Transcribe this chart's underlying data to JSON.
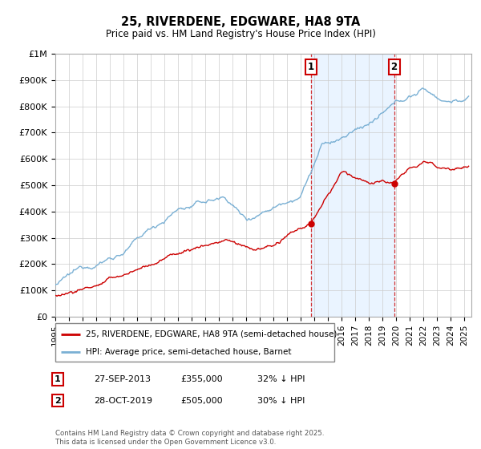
{
  "title": "25, RIVERDENE, EDGWARE, HA8 9TA",
  "subtitle": "Price paid vs. HM Land Registry's House Price Index (HPI)",
  "ylabel_ticks": [
    "£0",
    "£100K",
    "£200K",
    "£300K",
    "£400K",
    "£500K",
    "£600K",
    "£700K",
    "£800K",
    "£900K",
    "£1M"
  ],
  "ylim": [
    0,
    1000000
  ],
  "xlim_start": 1995,
  "xlim_end": 2025.5,
  "legend_line1": "25, RIVERDENE, EDGWARE, HA8 9TA (semi-detached house)",
  "legend_line2": "HPI: Average price, semi-detached house, Barnet",
  "annotation1_date": "27-SEP-2013",
  "annotation1_price": "£355,000",
  "annotation1_hpi": "32% ↓ HPI",
  "annotation2_date": "28-OCT-2019",
  "annotation2_price": "£505,000",
  "annotation2_hpi": "30% ↓ HPI",
  "footnote": "Contains HM Land Registry data © Crown copyright and database right 2025.\nThis data is licensed under the Open Government Licence v3.0.",
  "line_color_red": "#cc0000",
  "line_color_blue": "#7ab0d4",
  "vline_color": "#cc0000",
  "shade_color": "#ddeeff",
  "grid_color": "#cccccc",
  "annotation_box_color": "#cc0000",
  "purchase1_x": 2013.75,
  "purchase1_y": 355000,
  "purchase2_x": 2019.83,
  "purchase2_y": 505000
}
